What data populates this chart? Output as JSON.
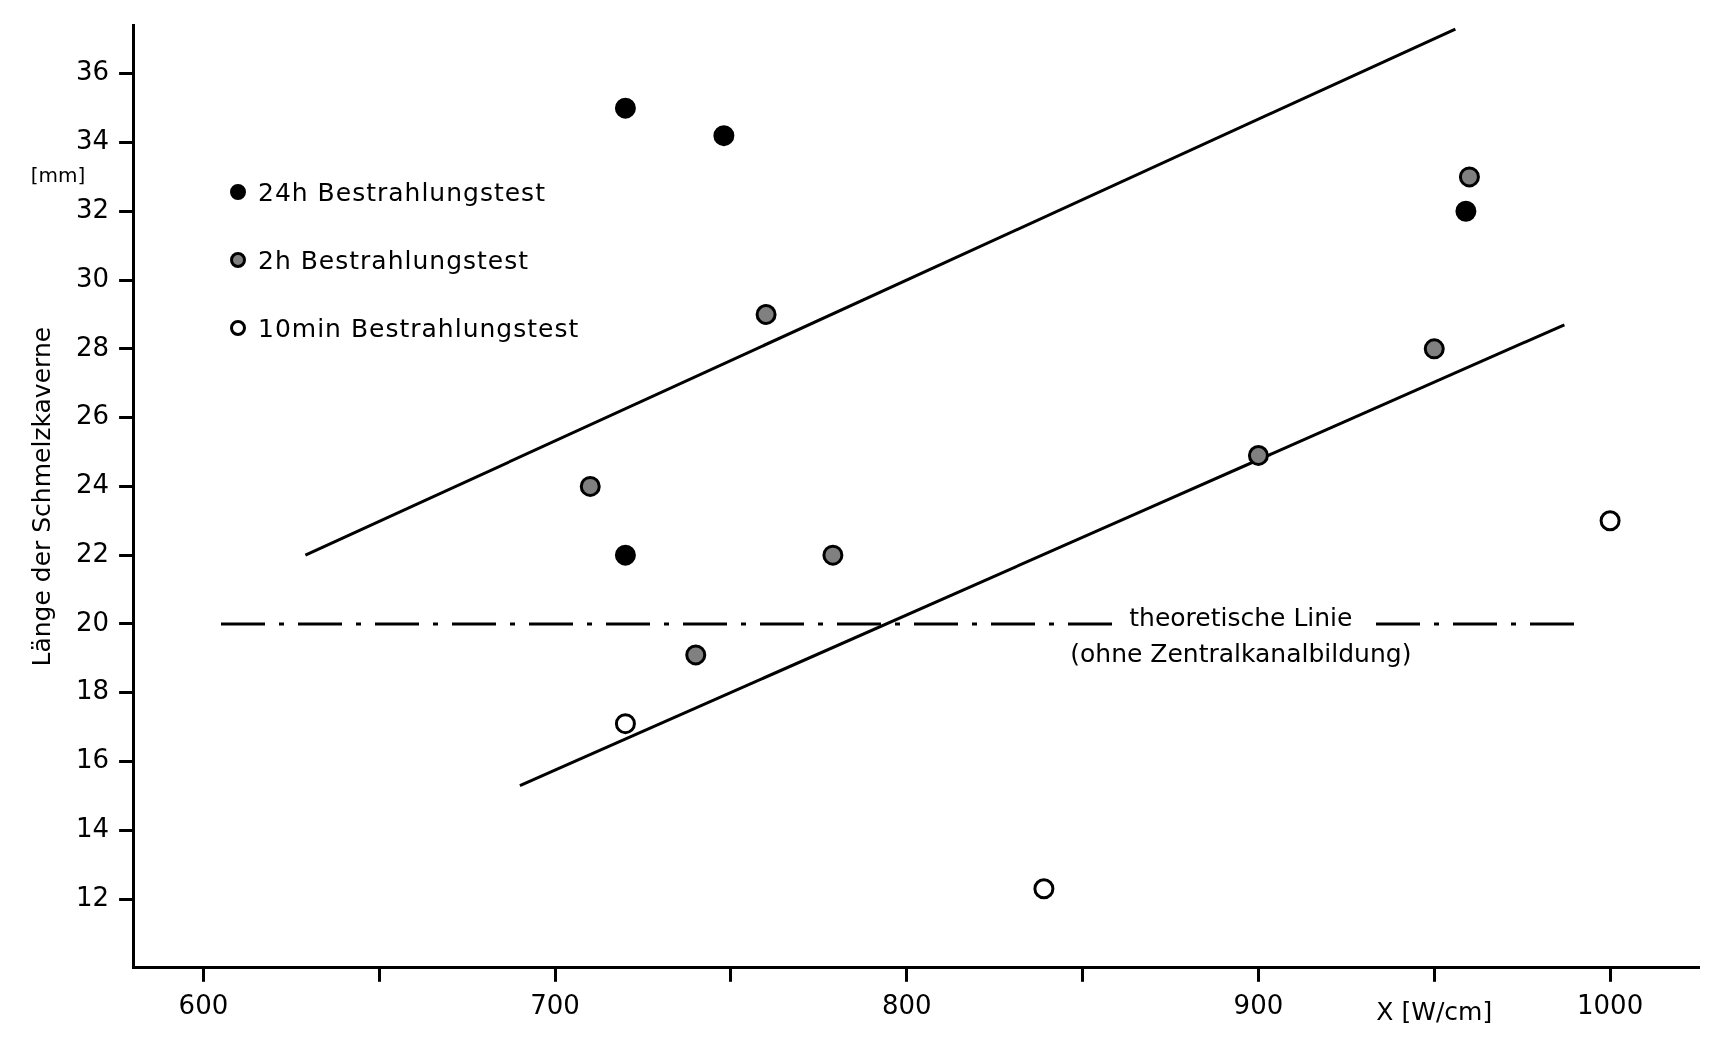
{
  "chart_data": {
    "type": "scatter",
    "xlabel": "X [W/cm]",
    "ylabel": "Länge der Schmelzkaverne",
    "xlim": [
      580,
      1025
    ],
    "ylim": [
      10,
      37.4
    ],
    "xticks": [
      600,
      {
        "value": 650,
        "label": null
      },
      700,
      {
        "value": 750,
        "label": null
      },
      800,
      {
        "value": 850,
        "label": null
      },
      900,
      {
        "value": 950,
        "label": null
      },
      1000
    ],
    "yticks": [
      12,
      14,
      16,
      18,
      20,
      22,
      24,
      26,
      28,
      30,
      32,
      34,
      36
    ],
    "grid": false,
    "legend": "top left",
    "marker": "circle",
    "series": [
      {
        "name": "24h Bestrahlungstest",
        "color": "#000000",
        "x": [
          720,
          748,
          720,
          959
        ],
        "values": [
          35.0,
          34.2,
          22.0,
          32.0
        ]
      },
      {
        "name": "2h Bestrahlungstest",
        "color": "#808080",
        "x": [
          710,
          760,
          779,
          740,
          900,
          950,
          960
        ],
        "values": [
          24.0,
          29.0,
          22.0,
          19.1,
          24.9,
          28.0,
          33.0
        ]
      },
      {
        "name": "10min Bestrahlungstest",
        "color": "#ffffff",
        "x": [
          720,
          839,
          1000
        ],
        "values": [
          17.1,
          12.3,
          23.0
        ]
      },
      {
        "type": "line",
        "color": "#000000",
        "marker": "none",
        "x": [
          629,
          956
        ],
        "values": [
          22.0,
          37.3
        ]
      },
      {
        "type": "line",
        "color": "#000000",
        "marker": "none",
        "x": [
          690,
          987
        ],
        "values": [
          15.3,
          28.7
        ]
      }
    ],
    "ref_lines": [
      {
        "axis": "y",
        "value": 20,
        "label": "theoretische Linie\n(ohne Zentralkanalbildung)",
        "color": "#000000",
        "line_style": "dashdot"
      }
    ],
    "annotations": [
      "[mm]"
    ]
  }
}
